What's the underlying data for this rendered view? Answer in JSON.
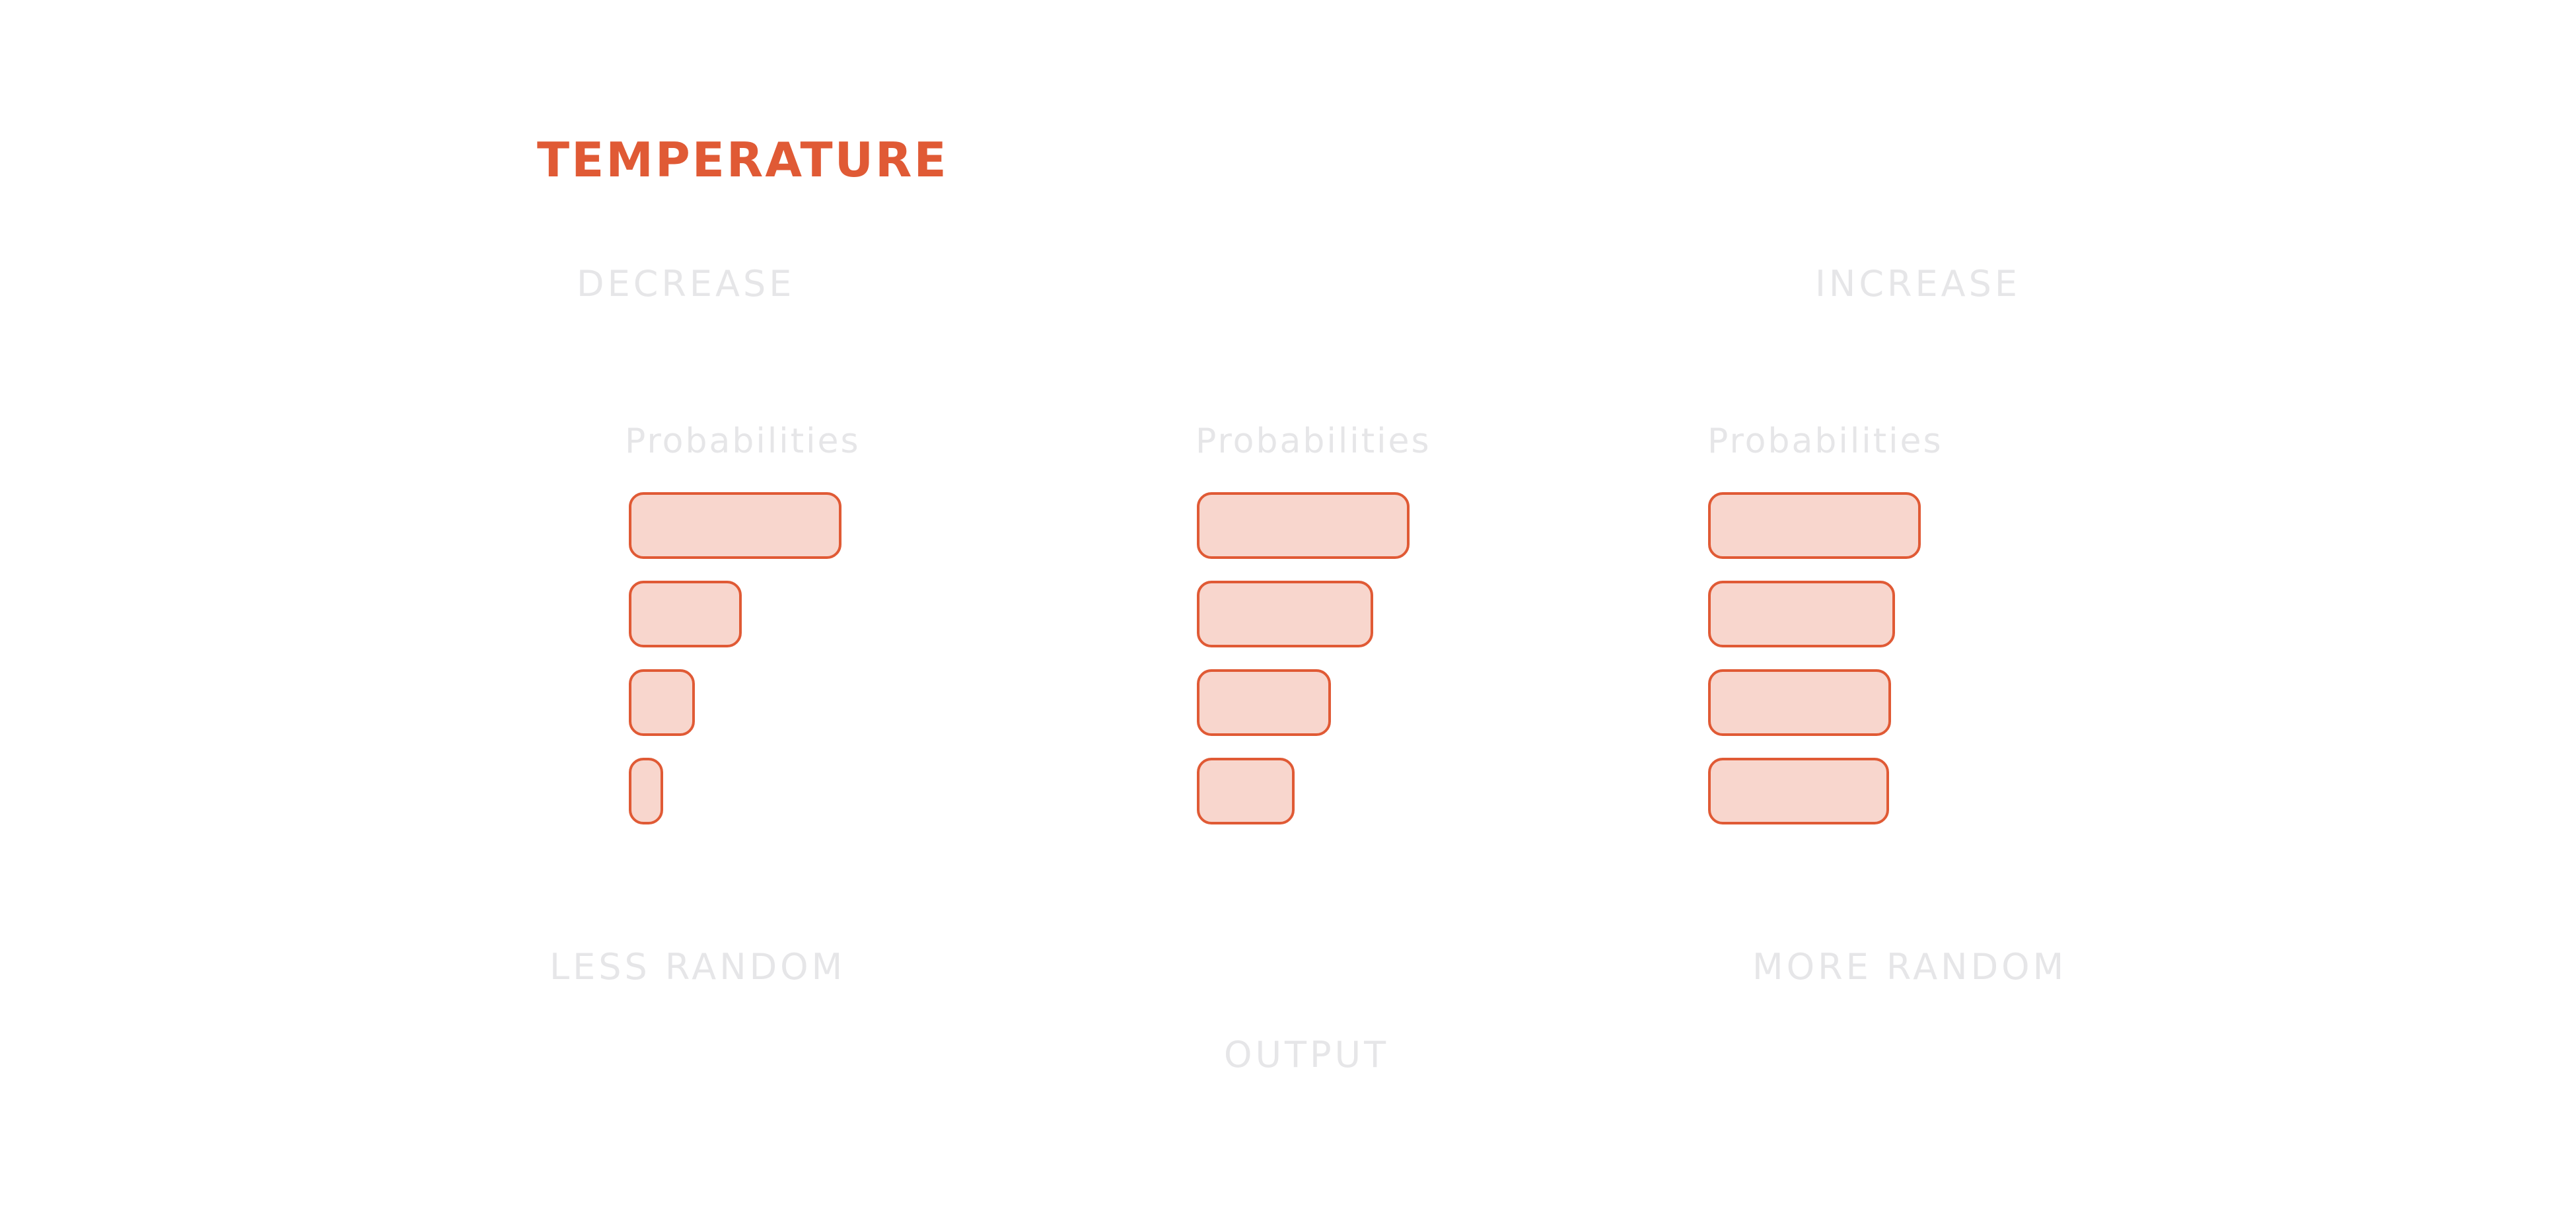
{
  "diagram": {
    "title": "TEMPERATURE",
    "direction_labels": {
      "decrease": "DECREASE",
      "increase": "INCREASE"
    },
    "outcome_labels": {
      "less_random": "LESS RANDOM",
      "more_random": "MORE RANDOM",
      "output": "OUTPUT"
    },
    "columns": [
      {
        "title": "Probabilities",
        "relative_probabilities": [
          1.0,
          0.53,
          0.31,
          0.16
        ]
      },
      {
        "title": "Probabilities",
        "relative_probabilities": [
          1.0,
          0.83,
          0.63,
          0.46
        ]
      },
      {
        "title": "Probabilities",
        "relative_probabilities": [
          1.0,
          0.88,
          0.86,
          0.85
        ]
      }
    ],
    "colors": {
      "accent": "#e05a35",
      "bar_fill": "#f8d6cd",
      "faint_text": "#e6e6e8"
    }
  }
}
